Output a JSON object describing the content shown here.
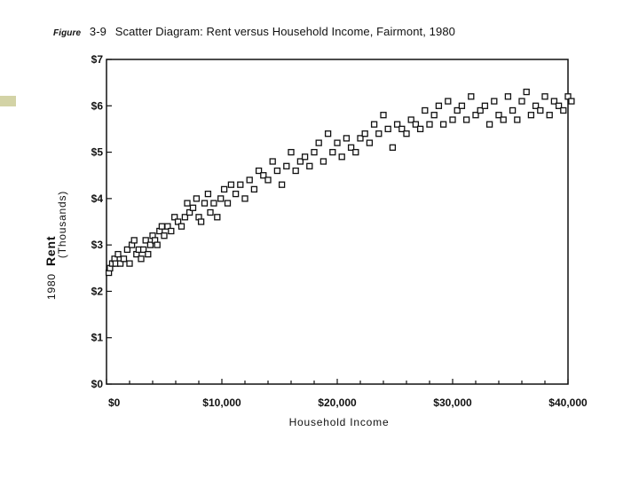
{
  "caption": {
    "figure_word": "Figure",
    "number": "3-9",
    "title": "Scatter Diagram: Rent versus Household Income, Fairmont, 1980"
  },
  "chart_data": {
    "type": "scatter",
    "title": "Scatter Diagram: Rent versus Household Income, Fairmont, 1980",
    "xlabel": "Household Income",
    "ylabel_prefix": "1980",
    "ylabel": "Rent",
    "ylabel_unit": "(Thousands)",
    "xlim": [
      0,
      40000
    ],
    "ylim": [
      0,
      7
    ],
    "xticks": [
      0,
      10000,
      20000,
      30000,
      40000
    ],
    "xtick_labels": [
      "$0",
      "$10,000",
      "$20,000",
      "$30,000",
      "$40,000"
    ],
    "yticks": [
      0,
      1,
      2,
      3,
      4,
      5,
      6,
      7
    ],
    "ytick_labels": [
      "$0",
      "$1",
      "$2",
      "$3",
      "$4",
      "$5",
      "$6",
      "$7"
    ],
    "grid": false,
    "marker": "open-square",
    "series": [
      {
        "points": [
          [
            200,
            2.4
          ],
          [
            300,
            2.5
          ],
          [
            500,
            2.6
          ],
          [
            700,
            2.7
          ],
          [
            800,
            2.6
          ],
          [
            1000,
            2.8
          ],
          [
            1200,
            2.6
          ],
          [
            1500,
            2.7
          ],
          [
            1800,
            2.9
          ],
          [
            2000,
            2.6
          ],
          [
            2200,
            3.0
          ],
          [
            2400,
            3.1
          ],
          [
            2600,
            2.8
          ],
          [
            2800,
            2.9
          ],
          [
            3000,
            2.7
          ],
          [
            3200,
            2.9
          ],
          [
            3400,
            3.1
          ],
          [
            3600,
            2.8
          ],
          [
            3800,
            3.0
          ],
          [
            4000,
            3.2
          ],
          [
            4200,
            3.1
          ],
          [
            4400,
            3.0
          ],
          [
            4600,
            3.3
          ],
          [
            4800,
            3.4
          ],
          [
            5000,
            3.2
          ],
          [
            5300,
            3.4
          ],
          [
            5600,
            3.3
          ],
          [
            5900,
            3.6
          ],
          [
            6200,
            3.5
          ],
          [
            6500,
            3.4
          ],
          [
            6800,
            3.6
          ],
          [
            7000,
            3.9
          ],
          [
            7200,
            3.7
          ],
          [
            7500,
            3.8
          ],
          [
            7800,
            4.0
          ],
          [
            8000,
            3.6
          ],
          [
            8200,
            3.5
          ],
          [
            8500,
            3.9
          ],
          [
            8800,
            4.1
          ],
          [
            9000,
            3.7
          ],
          [
            9300,
            3.9
          ],
          [
            9600,
            3.6
          ],
          [
            9900,
            4.0
          ],
          [
            10200,
            4.2
          ],
          [
            10500,
            3.9
          ],
          [
            10800,
            4.3
          ],
          [
            11200,
            4.1
          ],
          [
            11600,
            4.3
          ],
          [
            12000,
            4.0
          ],
          [
            12400,
            4.4
          ],
          [
            12800,
            4.2
          ],
          [
            13200,
            4.6
          ],
          [
            13600,
            4.5
          ],
          [
            14000,
            4.4
          ],
          [
            14400,
            4.8
          ],
          [
            14800,
            4.6
          ],
          [
            15200,
            4.3
          ],
          [
            15600,
            4.7
          ],
          [
            16000,
            5.0
          ],
          [
            16400,
            4.6
          ],
          [
            16800,
            4.8
          ],
          [
            17200,
            4.9
          ],
          [
            17600,
            4.7
          ],
          [
            18000,
            5.0
          ],
          [
            18400,
            5.2
          ],
          [
            18800,
            4.8
          ],
          [
            19200,
            5.4
          ],
          [
            19600,
            5.0
          ],
          [
            20000,
            5.2
          ],
          [
            20400,
            4.9
          ],
          [
            20800,
            5.3
          ],
          [
            21200,
            5.1
          ],
          [
            21600,
            5.0
          ],
          [
            22000,
            5.3
          ],
          [
            22400,
            5.4
          ],
          [
            22800,
            5.2
          ],
          [
            23200,
            5.6
          ],
          [
            23600,
            5.4
          ],
          [
            24000,
            5.8
          ],
          [
            24400,
            5.5
          ],
          [
            24800,
            5.1
          ],
          [
            25200,
            5.6
          ],
          [
            25600,
            5.5
          ],
          [
            26000,
            5.4
          ],
          [
            26400,
            5.7
          ],
          [
            26800,
            5.6
          ],
          [
            27200,
            5.5
          ],
          [
            27600,
            5.9
          ],
          [
            28000,
            5.6
          ],
          [
            28400,
            5.8
          ],
          [
            28800,
            6.0
          ],
          [
            29200,
            5.6
          ],
          [
            29600,
            6.1
          ],
          [
            30000,
            5.7
          ],
          [
            30400,
            5.9
          ],
          [
            30800,
            6.0
          ],
          [
            31200,
            5.7
          ],
          [
            31600,
            6.2
          ],
          [
            32000,
            5.8
          ],
          [
            32400,
            5.9
          ],
          [
            32800,
            6.0
          ],
          [
            33200,
            5.6
          ],
          [
            33600,
            6.1
          ],
          [
            34000,
            5.8
          ],
          [
            34400,
            5.7
          ],
          [
            34800,
            6.2
          ],
          [
            35200,
            5.9
          ],
          [
            35600,
            5.7
          ],
          [
            36000,
            6.1
          ],
          [
            36400,
            6.3
          ],
          [
            36800,
            5.8
          ],
          [
            37200,
            6.0
          ],
          [
            37600,
            5.9
          ],
          [
            38000,
            6.2
          ],
          [
            38400,
            5.8
          ],
          [
            38800,
            6.1
          ],
          [
            39200,
            6.0
          ],
          [
            39600,
            5.9
          ],
          [
            40000,
            6.2
          ],
          [
            40300,
            6.1
          ]
        ]
      }
    ]
  }
}
